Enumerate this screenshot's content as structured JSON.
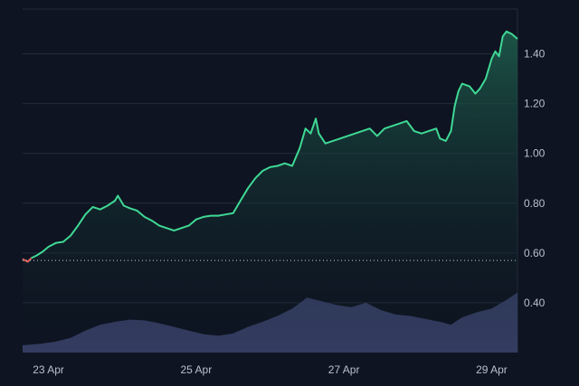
{
  "chart_data": {
    "type": "area",
    "title": "",
    "xlabel": "",
    "ylabel": "",
    "x_ticks": [
      {
        "label": "23 Apr",
        "value": 1.0
      },
      {
        "label": "25 Apr",
        "value": 3.0
      },
      {
        "label": "27 Apr",
        "value": 5.0
      },
      {
        "label": "29 Apr",
        "value": 7.0
      }
    ],
    "y_ticks": [
      0.4,
      0.6,
      0.8,
      1.0,
      1.2,
      1.4
    ],
    "y_tick_labels": [
      "0.40",
      "0.60",
      "0.80",
      "1.00",
      "1.20",
      "1.40"
    ],
    "ylim": [
      0.2,
      1.58
    ],
    "xlim": [
      0.65,
      7.35
    ],
    "grid": true,
    "baseline": 0.57,
    "series": [
      {
        "points": [
          [
            0.65,
            0.575
          ],
          [
            0.72,
            0.565
          ],
          [
            0.77,
            0.58
          ],
          [
            0.84,
            0.59
          ],
          [
            0.92,
            0.605
          ],
          [
            1.0,
            0.625
          ],
          [
            1.1,
            0.64
          ],
          [
            1.2,
            0.645
          ],
          [
            1.3,
            0.67
          ],
          [
            1.4,
            0.71
          ],
          [
            1.5,
            0.755
          ],
          [
            1.6,
            0.785
          ],
          [
            1.7,
            0.775
          ],
          [
            1.8,
            0.79
          ],
          [
            1.9,
            0.81
          ],
          [
            1.94,
            0.83
          ],
          [
            1.97,
            0.815
          ],
          [
            2.02,
            0.79
          ],
          [
            2.1,
            0.78
          ],
          [
            2.2,
            0.77
          ],
          [
            2.3,
            0.745
          ],
          [
            2.4,
            0.73
          ],
          [
            2.5,
            0.71
          ],
          [
            2.6,
            0.7
          ],
          [
            2.7,
            0.69
          ],
          [
            2.8,
            0.7
          ],
          [
            2.9,
            0.71
          ],
          [
            3.0,
            0.735
          ],
          [
            3.1,
            0.745
          ],
          [
            3.2,
            0.75
          ],
          [
            3.3,
            0.75
          ],
          [
            3.4,
            0.755
          ],
          [
            3.5,
            0.76
          ],
          [
            3.6,
            0.81
          ],
          [
            3.7,
            0.86
          ],
          [
            3.8,
            0.9
          ],
          [
            3.9,
            0.93
          ],
          [
            4.0,
            0.945
          ],
          [
            4.1,
            0.95
          ],
          [
            4.2,
            0.96
          ],
          [
            4.3,
            0.95
          ],
          [
            4.4,
            1.02
          ],
          [
            4.48,
            1.1
          ],
          [
            4.55,
            1.08
          ],
          [
            4.62,
            1.14
          ],
          [
            4.66,
            1.08
          ],
          [
            4.75,
            1.04
          ],
          [
            4.85,
            1.05
          ],
          [
            4.95,
            1.06
          ],
          [
            5.05,
            1.07
          ],
          [
            5.15,
            1.08
          ],
          [
            5.25,
            1.09
          ],
          [
            5.35,
            1.1
          ],
          [
            5.45,
            1.07
          ],
          [
            5.55,
            1.1
          ],
          [
            5.65,
            1.11
          ],
          [
            5.75,
            1.12
          ],
          [
            5.85,
            1.13
          ],
          [
            5.95,
            1.09
          ],
          [
            6.05,
            1.08
          ],
          [
            6.15,
            1.09
          ],
          [
            6.25,
            1.1
          ],
          [
            6.3,
            1.06
          ],
          [
            6.38,
            1.05
          ],
          [
            6.45,
            1.09
          ],
          [
            6.5,
            1.19
          ],
          [
            6.55,
            1.25
          ],
          [
            6.6,
            1.28
          ],
          [
            6.7,
            1.27
          ],
          [
            6.78,
            1.24
          ],
          [
            6.84,
            1.26
          ],
          [
            6.92,
            1.3
          ],
          [
            7.0,
            1.38
          ],
          [
            7.05,
            1.41
          ],
          [
            7.1,
            1.39
          ],
          [
            7.15,
            1.47
          ],
          [
            7.2,
            1.49
          ],
          [
            7.27,
            1.48
          ],
          [
            7.35,
            1.46
          ]
        ]
      }
    ],
    "volume": {
      "points": [
        [
          0.65,
          0.1
        ],
        [
          0.9,
          0.12
        ],
        [
          1.1,
          0.15
        ],
        [
          1.3,
          0.2
        ],
        [
          1.5,
          0.3
        ],
        [
          1.7,
          0.38
        ],
        [
          1.9,
          0.42
        ],
        [
          2.1,
          0.45
        ],
        [
          2.3,
          0.44
        ],
        [
          2.5,
          0.4
        ],
        [
          2.7,
          0.35
        ],
        [
          2.9,
          0.3
        ],
        [
          3.1,
          0.25
        ],
        [
          3.3,
          0.23
        ],
        [
          3.5,
          0.26
        ],
        [
          3.7,
          0.35
        ],
        [
          3.9,
          0.42
        ],
        [
          4.1,
          0.5
        ],
        [
          4.3,
          0.6
        ],
        [
          4.5,
          0.75
        ],
        [
          4.7,
          0.7
        ],
        [
          4.9,
          0.65
        ],
        [
          5.1,
          0.62
        ],
        [
          5.3,
          0.68
        ],
        [
          5.5,
          0.58
        ],
        [
          5.7,
          0.52
        ],
        [
          5.9,
          0.5
        ],
        [
          6.1,
          0.46
        ],
        [
          6.3,
          0.42
        ],
        [
          6.45,
          0.38
        ],
        [
          6.6,
          0.48
        ],
        [
          6.8,
          0.55
        ],
        [
          7.0,
          0.6
        ],
        [
          7.2,
          0.72
        ],
        [
          7.35,
          0.82
        ]
      ]
    },
    "colors": {
      "background": "#0e1421",
      "up_line": "#3fd895",
      "down_line": "#e05353",
      "area_top": "#1d5a4a",
      "volume": "#3d4670",
      "grid": "#232c3d",
      "tick_text": "#b9c0cc",
      "baseline": "#c9ced8"
    }
  }
}
